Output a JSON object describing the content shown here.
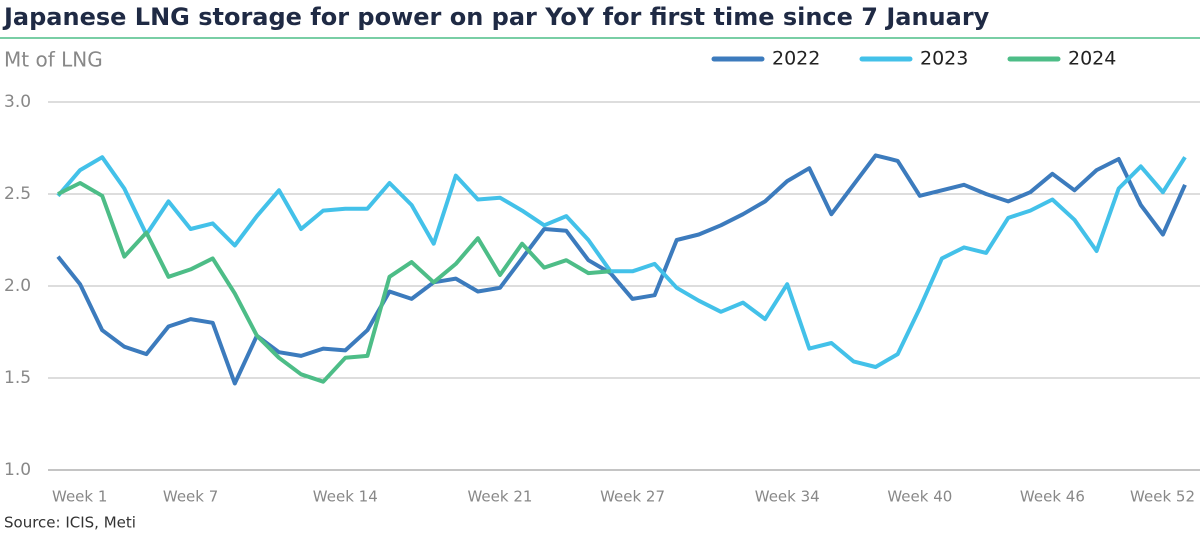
{
  "chart_data": {
    "type": "line",
    "title": "Japanese LNG storage for power on par YoY for first time since 7 January",
    "y_label": "Mt of LNG",
    "source": "Source: ICIS, Meti",
    "categories": [
      "Week 1",
      null,
      null,
      null,
      null,
      null,
      "Week 7",
      null,
      null,
      null,
      null,
      null,
      null,
      "Week 14",
      null,
      null,
      null,
      null,
      null,
      null,
      "Week 21",
      null,
      null,
      null,
      null,
      null,
      "Week 27",
      null,
      null,
      null,
      null,
      null,
      null,
      "Week 34",
      null,
      null,
      null,
      null,
      null,
      "Week 40",
      null,
      null,
      null,
      null,
      null,
      "Week 46",
      null,
      null,
      null,
      null,
      null,
      "Week 52"
    ],
    "series": [
      {
        "name": "2022",
        "color": "#3c7bbd",
        "values": [
          2.16,
          2.01,
          1.76,
          1.67,
          1.63,
          1.78,
          1.82,
          1.8,
          1.47,
          1.73,
          1.64,
          1.62,
          1.66,
          1.65,
          1.76,
          1.97,
          1.93,
          2.02,
          2.04,
          1.97,
          1.99,
          2.15,
          2.31,
          2.3,
          2.14,
          2.07,
          1.93,
          1.95,
          2.25,
          2.28,
          2.33,
          2.39,
          2.46,
          2.57,
          2.64,
          2.39,
          2.55,
          2.71,
          2.68,
          2.49,
          2.52,
          2.55,
          2.5,
          2.46,
          2.51,
          2.61,
          2.52,
          2.63,
          2.69,
          2.44,
          2.28,
          2.55
        ]
      },
      {
        "name": "2023",
        "color": "#43c1e9",
        "values": [
          2.49,
          2.63,
          2.7,
          2.53,
          2.28,
          2.46,
          2.31,
          2.34,
          2.22,
          2.38,
          2.52,
          2.31,
          2.41,
          2.42,
          2.42,
          2.56,
          2.44,
          2.23,
          2.6,
          2.47,
          2.48,
          2.41,
          2.33,
          2.38,
          2.25,
          2.08,
          2.08,
          2.12,
          1.99,
          1.92,
          1.86,
          1.91,
          1.82,
          2.01,
          1.66,
          1.69,
          1.59,
          1.56,
          1.63,
          1.88,
          2.15,
          2.21,
          2.18,
          2.37,
          2.41,
          2.47,
          2.36,
          2.19,
          2.53,
          2.65,
          2.51,
          2.7
        ]
      },
      {
        "name": "2024",
        "color": "#4dbd87",
        "values": [
          2.5,
          2.56,
          2.49,
          2.16,
          2.29,
          2.05,
          2.09,
          2.15,
          1.96,
          1.73,
          1.61,
          1.52,
          1.48,
          1.61,
          1.62,
          2.05,
          2.13,
          2.02,
          2.12,
          2.26,
          2.06,
          2.23,
          2.1,
          2.14,
          2.07,
          2.08,
          null,
          null,
          null,
          null,
          null,
          null,
          null,
          null,
          null,
          null,
          null,
          null,
          null,
          null,
          null,
          null,
          null,
          null,
          null,
          null,
          null,
          null,
          null,
          null,
          null,
          null
        ]
      }
    ],
    "ylim": [
      1,
      3
    ],
    "yticks": [
      {
        "value": 1,
        "label": "1.0"
      },
      {
        "value": 1.5,
        "label": "1.5"
      },
      {
        "value": 2,
        "label": "2.0"
      },
      {
        "value": 2.5,
        "label": "2.5"
      },
      {
        "value": 3,
        "label": "3.0"
      }
    ],
    "grid": true
  }
}
